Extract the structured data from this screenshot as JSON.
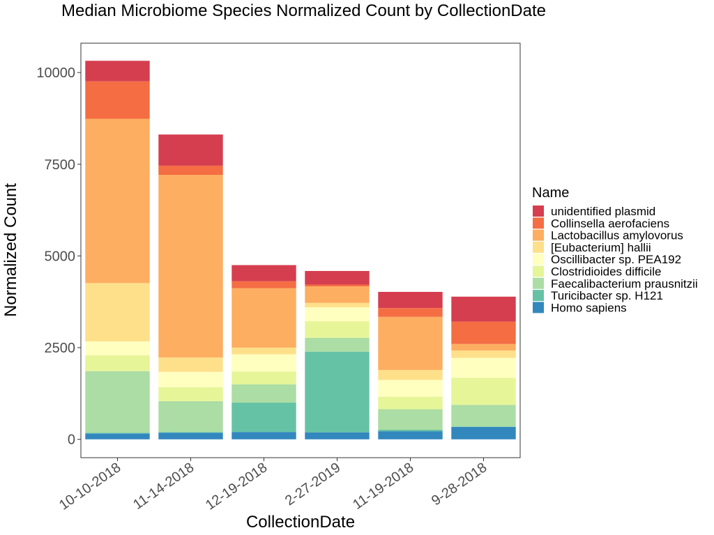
{
  "chart_data": {
    "type": "bar",
    "stacked": true,
    "title": "Median Microbiome Species Normalized Count by CollectionDate",
    "xlabel": "CollectionDate",
    "ylabel": "Normalized Count",
    "ylim": [
      -500,
      10800
    ],
    "yticks": [
      0,
      2500,
      5000,
      7500,
      10000
    ],
    "ytick_labels": [
      "0",
      "2500",
      "5000",
      "7500",
      "10000"
    ],
    "grid": false,
    "legend": {
      "title": "Name",
      "position": "right"
    },
    "categories": [
      "10-10-2018",
      "11-14-2018",
      "12-19-2018",
      "2-27-2019",
      "11-19-2018",
      "9-28-2018"
    ],
    "series": [
      {
        "name": "Homo sapiens",
        "color": "#3288bd",
        "values": [
          160,
          180,
          200,
          190,
          220,
          340
        ]
      },
      {
        "name": "Turicibacter sp. H121",
        "color": "#66c2a5",
        "values": [
          20,
          20,
          800,
          2200,
          40,
          10
        ]
      },
      {
        "name": "Faecalibacterium prausnitzii",
        "color": "#abdda4",
        "values": [
          1680,
          840,
          500,
          380,
          560,
          590
        ]
      },
      {
        "name": "Clostridioides difficile",
        "color": "#e6f598",
        "values": [
          430,
          380,
          350,
          450,
          340,
          740
        ]
      },
      {
        "name": "Oscillibacter sp. PEA192",
        "color": "#ffffbf",
        "values": [
          380,
          420,
          470,
          380,
          460,
          540
        ]
      },
      {
        "name": "[Eubacterium] hallii",
        "color": "#fee08b",
        "values": [
          1590,
          390,
          180,
          120,
          270,
          200
        ]
      },
      {
        "name": "Lactobacillus amylovorus",
        "color": "#fdae61",
        "values": [
          4480,
          4980,
          1620,
          450,
          1450,
          180
        ]
      },
      {
        "name": "Collinsella aerofaciens",
        "color": "#f46d43",
        "values": [
          1020,
          250,
          190,
          50,
          240,
          610
        ]
      },
      {
        "name": "unidentified plasmid",
        "color": "#d53e4f",
        "values": [
          560,
          850,
          440,
          370,
          440,
          680
        ]
      }
    ],
    "legend_order": [
      "unidentified plasmid",
      "Collinsella aerofaciens",
      "Lactobacillus amylovorus",
      "[Eubacterium] hallii",
      "Oscillibacter sp. PEA192",
      "Clostridioides difficile",
      "Faecalibacterium prausnitzii",
      "Turicibacter sp. H121",
      "Homo sapiens"
    ]
  }
}
